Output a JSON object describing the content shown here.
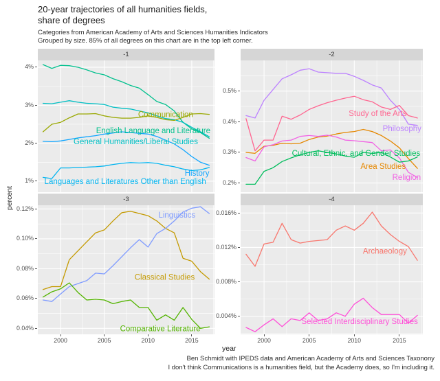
{
  "header": {
    "title_lines": [
      "20-year trajectories of all humanities fields,",
      "share of degrees"
    ],
    "subtitle_lines": [
      "Categories from American Academy of Arts and Sciences Humanities Indicators",
      "Grouped by size. 85% of all degrees on this chart are in the top left corner."
    ]
  },
  "footer": {
    "caption_lines": [
      "Ben Schmidt with IPEDS data and American Academy of Arts and Sciences Taxonony",
      "I don't think Communications is a humanities field, but the Academy does, so I'm including it."
    ]
  },
  "theme": {
    "panel_background": "#ebebeb",
    "strip_background": "#d6d6d6",
    "grid_color": "#ffffff",
    "tick_text_color": "#4d4d4d"
  },
  "chart_data": {
    "type": "line",
    "title": "20-year trajectories of all humanities fields, share of degrees",
    "xlabel": "year",
    "ylabel": "percent",
    "legend": "none (series labeled directly on lines)",
    "grid": "white major and minor gridlines on grey panels",
    "x": [
      1998,
      1999,
      2000,
      2001,
      2002,
      2003,
      2004,
      2005,
      2006,
      2007,
      2008,
      2009,
      2010,
      2011,
      2012,
      2013,
      2014,
      2015,
      2016,
      2017
    ],
    "x_domain": [
      1997.4,
      2017.6
    ],
    "x_ticks": [
      2000,
      2005,
      2010,
      2015
    ],
    "x_tick_labels": [
      "2000",
      "2005",
      "2010",
      "2015"
    ],
    "x_minor": [
      2002.5,
      2007.5,
      2012.5,
      2017.5
    ],
    "facets": [
      {
        "strip": "-1",
        "y_domain": [
          0.71,
          4.18
        ],
        "y_ticks": [
          1,
          2,
          3,
          4
        ],
        "y_tick_labels": [
          "1%",
          "2%",
          "3%",
          "4%"
        ],
        "y_minor": [
          1.5,
          2.5,
          3.5
        ],
        "series": [
          {
            "name": "English Language and Literature",
            "color": "#00c08d",
            "label": {
              "year": 2010.6,
              "value": 2.34
            },
            "values": [
              4.07,
              3.97,
              4.05,
              4.04,
              4.0,
              3.93,
              3.85,
              3.8,
              3.7,
              3.62,
              3.52,
              3.45,
              3.28,
              3.1,
              3.02,
              2.85,
              2.55,
              2.38,
              2.28,
              2.13
            ]
          },
          {
            "name": "General Humanities/Liberal Studies",
            "color": "#00bfc4",
            "label": {
              "year": 2008.6,
              "value": 2.05
            },
            "values": [
              3.05,
              3.04,
              3.08,
              3.12,
              3.08,
              3.05,
              3.04,
              3.02,
              2.95,
              2.92,
              2.9,
              2.85,
              2.8,
              2.72,
              2.65,
              2.62,
              2.55,
              2.42,
              2.3,
              2.17
            ]
          },
          {
            "name": "Communication",
            "color": "#99a800",
            "label": {
              "year": 2012.0,
              "value": 2.76
            },
            "values": [
              2.3,
              2.5,
              2.55,
              2.67,
              2.77,
              2.77,
              2.78,
              2.72,
              2.68,
              2.66,
              2.66,
              2.68,
              2.72,
              2.68,
              2.62,
              2.6,
              2.68,
              2.77,
              2.78,
              2.76
            ]
          },
          {
            "name": "History",
            "color": "#0fa5ff",
            "label": {
              "year": 2015.6,
              "value": 1.22
            },
            "values": [
              2.05,
              2.04,
              2.06,
              2.1,
              2.14,
              2.17,
              2.2,
              2.24,
              2.27,
              2.3,
              2.28,
              2.26,
              2.24,
              2.18,
              2.08,
              1.98,
              1.83,
              1.65,
              1.5,
              1.42
            ]
          },
          {
            "name": "Languages and Literatures Other than English",
            "color": "#00b4f0",
            "label": {
              "year": 2007.4,
              "value": 1.0
            },
            "values": [
              1.1,
              1.07,
              1.35,
              1.35,
              1.36,
              1.37,
              1.38,
              1.4,
              1.44,
              1.47,
              1.49,
              1.48,
              1.49,
              1.47,
              1.42,
              1.38,
              1.32,
              1.28,
              1.3,
              1.36
            ]
          }
        ]
      },
      {
        "strip": "-2",
        "y_domain": [
          0.17,
          0.6
        ],
        "y_ticks": [
          0.2,
          0.3,
          0.4,
          0.5
        ],
        "y_tick_labels": [
          "0.2%",
          "0.3%",
          "0.4%",
          "0.5%"
        ],
        "y_minor": [
          0.25,
          0.35,
          0.45,
          0.55
        ],
        "series": [
          {
            "name": "Philosophy",
            "color": "#bc81ff",
            "label": {
              "year": 2015.3,
              "value": 0.378
            },
            "values": [
              0.42,
              0.412,
              0.47,
              0.505,
              0.54,
              0.553,
              0.568,
              0.573,
              0.562,
              0.56,
              0.558,
              0.558,
              0.548,
              0.535,
              0.52,
              0.51,
              0.47,
              0.44,
              0.392,
              0.388
            ]
          },
          {
            "name": "Study of the Arts",
            "color": "#ff6590",
            "label": {
              "year": 2012.6,
              "value": 0.428
            },
            "values": [
              0.41,
              0.305,
              0.34,
              0.34,
              0.418,
              0.408,
              0.422,
              0.44,
              0.452,
              0.462,
              0.47,
              0.477,
              0.483,
              0.472,
              0.465,
              0.448,
              0.44,
              0.453,
              0.42,
              0.412
            ]
          },
          {
            "name": "Area Studies",
            "color": "#e58700",
            "label": {
              "year": 2013.2,
              "value": 0.255
            },
            "values": [
              0.3,
              0.297,
              0.32,
              0.323,
              0.33,
              0.328,
              0.33,
              0.342,
              0.35,
              0.353,
              0.36,
              0.365,
              0.368,
              0.375,
              0.368,
              0.355,
              0.337,
              0.315,
              0.28,
              0.248
            ]
          },
          {
            "name": "Religion",
            "color": "#f162e4",
            "label": {
              "year": 2015.8,
              "value": 0.219
            },
            "values": [
              0.283,
              0.272,
              0.318,
              0.325,
              0.337,
              0.34,
              0.352,
              0.355,
              0.352,
              0.356,
              0.35,
              0.34,
              0.338,
              0.335,
              0.332,
              0.305,
              0.308,
              0.282,
              0.235,
              0.218
            ]
          },
          {
            "name": "Cultural, Ethnic, and Gender Studies",
            "color": "#00bc5c",
            "label": {
              "year": 2010.2,
              "value": 0.298
            },
            "values": [
              0.196,
              0.196,
              0.238,
              0.25,
              0.27,
              0.282,
              0.292,
              0.3,
              0.305,
              0.3,
              0.295,
              0.288,
              0.284,
              0.3,
              0.297,
              0.3,
              0.285,
              0.268,
              0.272,
              0.285
            ]
          }
        ]
      },
      {
        "strip": "-3",
        "y_domain": [
          0.036,
          0.1225
        ],
        "y_ticks": [
          0.04,
          0.06,
          0.08,
          0.1,
          0.12
        ],
        "y_tick_labels": [
          "0.04%",
          "0.06%",
          "0.08%",
          "0.10%",
          "0.12%"
        ],
        "y_minor": [
          0.05,
          0.07,
          0.09,
          0.11
        ],
        "series": [
          {
            "name": "Classical Studies",
            "color": "#c49a00",
            "label": {
              "year": 2011.9,
              "value": 0.0745
            },
            "values": [
              0.066,
              0.068,
              0.068,
              0.086,
              0.092,
              0.098,
              0.104,
              0.106,
              0.112,
              0.1175,
              0.1185,
              0.117,
              0.1155,
              0.112,
              0.107,
              0.104,
              0.087,
              0.085,
              0.078,
              0.073
            ]
          },
          {
            "name": "Linguistics",
            "color": "#7f9bff",
            "label": {
              "year": 2013.3,
              "value": 0.116
            },
            "values": [
              0.059,
              0.058,
              0.063,
              0.068,
              0.07,
              0.072,
              0.077,
              0.0765,
              0.082,
              0.088,
              0.094,
              0.0995,
              0.0945,
              0.1035,
              0.107,
              0.112,
              0.118,
              0.1205,
              0.1215,
              0.117
            ]
          },
          {
            "name": "Comparative Literature",
            "color": "#53b400",
            "label": {
              "year": 2011.4,
              "value": 0.0398
            },
            "values": [
              0.061,
              0.0645,
              0.0665,
              0.0705,
              0.064,
              0.059,
              0.0595,
              0.059,
              0.0565,
              0.058,
              0.059,
              0.054,
              0.054,
              0.0455,
              0.049,
              0.0455,
              0.054,
              0.046,
              0.04,
              0.041
            ]
          }
        ]
      },
      {
        "strip": "-4",
        "y_domain": [
          0.0019,
          0.0169
        ],
        "y_ticks": [
          0.004,
          0.008,
          0.012,
          0.016
        ],
        "y_tick_labels": [
          "0.004%",
          "0.008%",
          "0.012%",
          "0.016%"
        ],
        "y_minor": [
          0.002,
          0.006,
          0.01,
          0.014
        ],
        "series": [
          {
            "name": "Archaeology",
            "color": "#f8766d",
            "label": {
              "year": 2013.4,
              "value": 0.0116
            },
            "values": [
              0.0112,
              0.0098,
              0.0124,
              0.0126,
              0.0148,
              0.0129,
              0.0125,
              0.0127,
              0.0128,
              0.0129,
              0.014,
              0.0145,
              0.014,
              0.0148,
              0.0161,
              0.0145,
              0.0135,
              0.0127,
              0.0121,
              0.0105
            ]
          },
          {
            "name": "Selected Interdisciplinary Studies",
            "color": "#ff4fd8",
            "label": {
              "year": 2010.6,
              "value": 0.0034
            },
            "values": [
              0.0027,
              0.0022,
              0.003,
              0.0037,
              0.0028,
              0.0037,
              0.0035,
              0.0044,
              0.0035,
              0.0037,
              0.0044,
              0.004,
              0.0054,
              0.0061,
              0.005,
              0.0042,
              0.0042,
              0.0042,
              0.0032,
              0.0041
            ]
          }
        ]
      }
    ]
  }
}
